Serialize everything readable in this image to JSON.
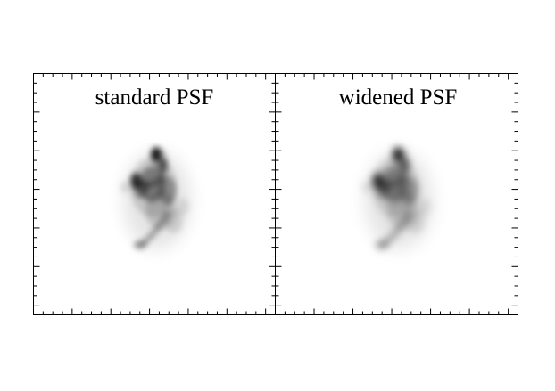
{
  "panels": [
    {
      "title": "standard PSF",
      "blur_level": "standard"
    },
    {
      "title": "widened PSF",
      "blur_level": "widened"
    }
  ],
  "colors": {
    "background": "#ffffff",
    "frame": "#000000",
    "ink": "#000000"
  }
}
